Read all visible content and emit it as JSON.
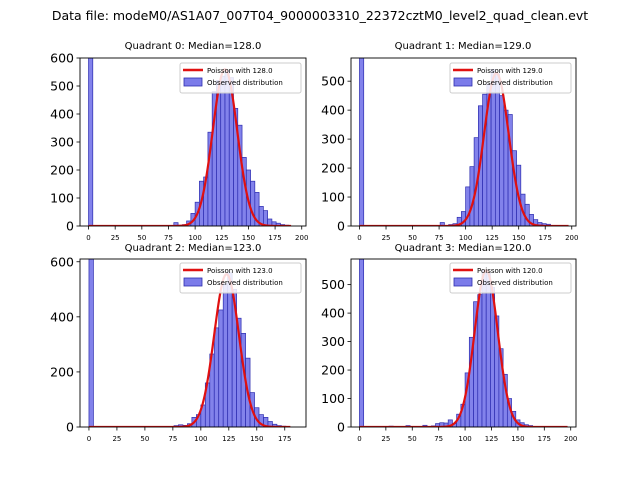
{
  "figure": {
    "suptitle": "Data file: modeM0/AS1A07_007T04_9000003310_22372cztM0_level2_quad_clean.evt"
  },
  "colors": {
    "bar_fill": "#7b7bea",
    "bar_edge": "#2d2db0",
    "fit_line": "#e01010",
    "axis": "#000000"
  },
  "chart_data": [
    {
      "type": "bar",
      "title": "Quadrant 0: Median=128.0",
      "median": 128.0,
      "xlim": [
        -8,
        204
      ],
      "ylim": [
        0,
        600
      ],
      "xticks": [
        0,
        25,
        50,
        75,
        100,
        125,
        150,
        175,
        200
      ],
      "yticks": [
        0,
        100,
        200,
        300,
        400,
        500,
        600
      ],
      "bin_width": 4,
      "bins": [
        [
          0,
          600
        ],
        [
          80,
          12
        ],
        [
          84,
          3
        ],
        [
          88,
          5
        ],
        [
          92,
          18
        ],
        [
          96,
          45
        ],
        [
          100,
          85
        ],
        [
          104,
          160
        ],
        [
          108,
          175
        ],
        [
          112,
          335
        ],
        [
          116,
          480
        ],
        [
          120,
          520
        ],
        [
          124,
          535
        ],
        [
          128,
          555
        ],
        [
          132,
          530
        ],
        [
          136,
          420
        ],
        [
          140,
          360
        ],
        [
          144,
          245
        ],
        [
          148,
          200
        ],
        [
          152,
          160
        ],
        [
          156,
          120
        ],
        [
          160,
          70
        ],
        [
          164,
          55
        ],
        [
          168,
          25
        ],
        [
          172,
          15
        ],
        [
          176,
          10
        ],
        [
          180,
          5
        ],
        [
          184,
          3
        ]
      ],
      "fit": {
        "lambda": 128.0,
        "peak": 560,
        "sigma": 11.5,
        "x_range": [
          0,
          190
        ]
      },
      "legend": {
        "position": "top-right",
        "fit_label": "Poisson with 128.0",
        "hist_label": "Observed distribution"
      }
    },
    {
      "type": "bar",
      "title": "Quadrant 1: Median=129.0",
      "median": 129.0,
      "xlim": [
        -8,
        204
      ],
      "ylim": [
        0,
        580
      ],
      "xticks": [
        0,
        25,
        50,
        75,
        100,
        125,
        150,
        175,
        200
      ],
      "yticks": [
        0,
        100,
        200,
        300,
        400,
        500
      ],
      "bin_width": 4,
      "bins": [
        [
          0,
          580
        ],
        [
          76,
          12
        ],
        [
          84,
          5
        ],
        [
          88,
          8
        ],
        [
          92,
          30
        ],
        [
          96,
          50
        ],
        [
          100,
          135
        ],
        [
          104,
          205
        ],
        [
          108,
          305
        ],
        [
          112,
          415
        ],
        [
          116,
          455
        ],
        [
          120,
          490
        ],
        [
          124,
          540
        ],
        [
          128,
          525
        ],
        [
          132,
          450
        ],
        [
          136,
          400
        ],
        [
          140,
          385
        ],
        [
          144,
          260
        ],
        [
          148,
          210
        ],
        [
          152,
          110
        ],
        [
          156,
          75
        ],
        [
          160,
          40
        ],
        [
          164,
          22
        ],
        [
          168,
          12
        ],
        [
          172,
          8
        ],
        [
          176,
          6
        ]
      ],
      "fit": {
        "lambda": 129.0,
        "peak": 528,
        "sigma": 11.5,
        "x_range": [
          0,
          197
        ]
      },
      "legend": {
        "position": "top-right",
        "fit_label": "Poisson with 129.0",
        "hist_label": "Observed distribution"
      }
    },
    {
      "type": "bar",
      "title": "Quadrant 2: Median=123.0",
      "median": 123.0,
      "xlim": [
        -8,
        194
      ],
      "ylim": [
        0,
        610
      ],
      "xticks": [
        0,
        25,
        50,
        75,
        100,
        125,
        150,
        175
      ],
      "yticks": [
        0,
        200,
        400,
        600
      ],
      "bin_width": 4,
      "bins": [
        [
          0,
          610
        ],
        [
          76,
          5
        ],
        [
          80,
          8
        ],
        [
          84,
          6
        ],
        [
          88,
          12
        ],
        [
          92,
          35
        ],
        [
          96,
          45
        ],
        [
          100,
          80
        ],
        [
          104,
          160
        ],
        [
          108,
          265
        ],
        [
          112,
          360
        ],
        [
          116,
          425
        ],
        [
          120,
          520
        ],
        [
          124,
          560
        ],
        [
          128,
          500
        ],
        [
          132,
          395
        ],
        [
          136,
          340
        ],
        [
          140,
          250
        ],
        [
          144,
          125
        ],
        [
          148,
          70
        ],
        [
          152,
          45
        ],
        [
          156,
          35
        ],
        [
          160,
          20
        ],
        [
          164,
          10
        ],
        [
          168,
          5
        ],
        [
          172,
          3
        ]
      ],
      "fit": {
        "lambda": 123.0,
        "peak": 555,
        "sigma": 11.0,
        "x_range": [
          0,
          180
        ]
      },
      "legend": {
        "position": "top-right",
        "fit_label": "Poisson with 123.0",
        "hist_label": "Observed distribution"
      }
    },
    {
      "type": "bar",
      "title": "Quadrant 3: Median=120.0",
      "median": 120.0,
      "xlim": [
        -8,
        205
      ],
      "ylim": [
        0,
        590
      ],
      "xticks": [
        0,
        25,
        50,
        75,
        100,
        125,
        150,
        175,
        200
      ],
      "yticks": [
        0,
        100,
        200,
        300,
        400,
        500
      ],
      "bin_width": 4,
      "bins": [
        [
          0,
          590
        ],
        [
          28,
          3
        ],
        [
          36,
          2
        ],
        [
          44,
          5
        ],
        [
          52,
          2
        ],
        [
          60,
          6
        ],
        [
          68,
          4
        ],
        [
          72,
          12
        ],
        [
          76,
          15
        ],
        [
          80,
          14
        ],
        [
          84,
          25
        ],
        [
          88,
          12
        ],
        [
          92,
          45
        ],
        [
          96,
          80
        ],
        [
          100,
          190
        ],
        [
          104,
          315
        ],
        [
          108,
          440
        ],
        [
          112,
          465
        ],
        [
          116,
          550
        ],
        [
          120,
          540
        ],
        [
          124,
          490
        ],
        [
          128,
          390
        ],
        [
          132,
          275
        ],
        [
          136,
          185
        ],
        [
          140,
          100
        ],
        [
          144,
          55
        ],
        [
          148,
          25
        ],
        [
          152,
          15
        ],
        [
          156,
          8
        ],
        [
          160,
          5
        ]
      ],
      "fit": {
        "lambda": 120.0,
        "peak": 550,
        "sigma": 11.0,
        "x_range": [
          0,
          197
        ]
      },
      "legend": {
        "position": "top-right",
        "fit_label": "Poisson with 120.0",
        "hist_label": "Observed distribution"
      }
    }
  ]
}
